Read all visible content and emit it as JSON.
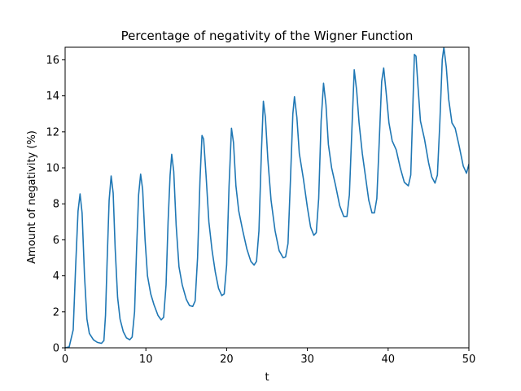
{
  "chart_data": {
    "type": "line",
    "title": "Percentage of negativity of the Wigner Function",
    "xlabel": "t",
    "ylabel": "Amount of negativity (%)",
    "xlim": [
      0,
      50
    ],
    "ylim": [
      0,
      16.7
    ],
    "xticks": [
      0,
      10,
      20,
      30,
      40,
      50
    ],
    "yticks": [
      0,
      2,
      4,
      6,
      8,
      10,
      12,
      14,
      16
    ],
    "grid": false,
    "line_color": "#1f77b4",
    "series": [
      {
        "points": [
          [
            0.0,
            0.0
          ],
          [
            0.5,
            0.05
          ],
          [
            1.0,
            1.0
          ],
          [
            1.3,
            4.5
          ],
          [
            1.6,
            7.6
          ],
          [
            1.85,
            8.55
          ],
          [
            2.1,
            7.5
          ],
          [
            2.4,
            4.0
          ],
          [
            2.7,
            1.6
          ],
          [
            3.0,
            0.8
          ],
          [
            3.5,
            0.45
          ],
          [
            4.0,
            0.3
          ],
          [
            4.5,
            0.25
          ],
          [
            4.8,
            0.4
          ],
          [
            5.0,
            1.8
          ],
          [
            5.2,
            4.8
          ],
          [
            5.45,
            8.2
          ],
          [
            5.7,
            9.55
          ],
          [
            5.95,
            8.6
          ],
          [
            6.2,
            5.5
          ],
          [
            6.5,
            2.8
          ],
          [
            6.8,
            1.6
          ],
          [
            7.2,
            0.9
          ],
          [
            7.6,
            0.55
          ],
          [
            8.0,
            0.45
          ],
          [
            8.3,
            0.6
          ],
          [
            8.6,
            2.0
          ],
          [
            8.85,
            5.5
          ],
          [
            9.1,
            8.5
          ],
          [
            9.35,
            9.65
          ],
          [
            9.6,
            8.8
          ],
          [
            9.9,
            6.0
          ],
          [
            10.2,
            4.0
          ],
          [
            10.6,
            3.0
          ],
          [
            11.0,
            2.4
          ],
          [
            11.5,
            1.8
          ],
          [
            11.9,
            1.55
          ],
          [
            12.2,
            1.7
          ],
          [
            12.5,
            3.5
          ],
          [
            12.75,
            7.0
          ],
          [
            13.0,
            9.6
          ],
          [
            13.2,
            10.75
          ],
          [
            13.45,
            9.8
          ],
          [
            13.75,
            6.8
          ],
          [
            14.1,
            4.5
          ],
          [
            14.5,
            3.5
          ],
          [
            15.0,
            2.7
          ],
          [
            15.4,
            2.35
          ],
          [
            15.8,
            2.3
          ],
          [
            16.1,
            2.6
          ],
          [
            16.4,
            5.0
          ],
          [
            16.7,
            9.3
          ],
          [
            16.95,
            11.8
          ],
          [
            17.15,
            11.6
          ],
          [
            17.45,
            9.6
          ],
          [
            17.8,
            7.0
          ],
          [
            18.2,
            5.4
          ],
          [
            18.6,
            4.2
          ],
          [
            19.0,
            3.3
          ],
          [
            19.4,
            2.9
          ],
          [
            19.7,
            3.0
          ],
          [
            20.0,
            4.6
          ],
          [
            20.3,
            9.0
          ],
          [
            20.6,
            12.2
          ],
          [
            20.85,
            11.4
          ],
          [
            21.15,
            9.0
          ],
          [
            21.5,
            7.6
          ],
          [
            22.0,
            6.5
          ],
          [
            22.5,
            5.5
          ],
          [
            23.0,
            4.8
          ],
          [
            23.4,
            4.6
          ],
          [
            23.7,
            4.8
          ],
          [
            24.0,
            6.5
          ],
          [
            24.3,
            10.8
          ],
          [
            24.55,
            13.7
          ],
          [
            24.8,
            12.8
          ],
          [
            25.1,
            10.5
          ],
          [
            25.5,
            8.2
          ],
          [
            26.0,
            6.5
          ],
          [
            26.5,
            5.4
          ],
          [
            27.0,
            5.0
          ],
          [
            27.3,
            5.05
          ],
          [
            27.6,
            5.8
          ],
          [
            27.9,
            9.3
          ],
          [
            28.2,
            13.0
          ],
          [
            28.4,
            13.95
          ],
          [
            28.7,
            12.8
          ],
          [
            29.0,
            10.8
          ],
          [
            29.5,
            9.4
          ],
          [
            30.0,
            7.8
          ],
          [
            30.4,
            6.7
          ],
          [
            30.8,
            6.25
          ],
          [
            31.1,
            6.4
          ],
          [
            31.4,
            8.3
          ],
          [
            31.7,
            12.6
          ],
          [
            32.0,
            14.7
          ],
          [
            32.3,
            13.5
          ],
          [
            32.6,
            11.3
          ],
          [
            33.0,
            10.0
          ],
          [
            33.5,
            9.0
          ],
          [
            34.0,
            7.9
          ],
          [
            34.5,
            7.3
          ],
          [
            34.9,
            7.3
          ],
          [
            35.2,
            8.5
          ],
          [
            35.5,
            12.0
          ],
          [
            35.8,
            15.45
          ],
          [
            36.1,
            14.3
          ],
          [
            36.4,
            12.5
          ],
          [
            36.8,
            10.8
          ],
          [
            37.2,
            9.5
          ],
          [
            37.6,
            8.2
          ],
          [
            38.0,
            7.5
          ],
          [
            38.3,
            7.5
          ],
          [
            38.6,
            8.3
          ],
          [
            38.9,
            11.5
          ],
          [
            39.2,
            14.8
          ],
          [
            39.45,
            15.55
          ],
          [
            39.75,
            14.2
          ],
          [
            40.1,
            12.5
          ],
          [
            40.5,
            11.5
          ],
          [
            41.0,
            11.0
          ],
          [
            41.5,
            10.0
          ],
          [
            42.0,
            9.2
          ],
          [
            42.5,
            9.0
          ],
          [
            42.8,
            9.6
          ],
          [
            43.0,
            12.5
          ],
          [
            43.25,
            16.3
          ],
          [
            43.45,
            16.2
          ],
          [
            43.7,
            14.5
          ],
          [
            44.0,
            12.6
          ],
          [
            44.5,
            11.6
          ],
          [
            45.0,
            10.3
          ],
          [
            45.4,
            9.5
          ],
          [
            45.8,
            9.15
          ],
          [
            46.1,
            9.6
          ],
          [
            46.4,
            12.5
          ],
          [
            46.7,
            16.0
          ],
          [
            46.9,
            16.7
          ],
          [
            47.2,
            15.6
          ],
          [
            47.5,
            13.8
          ],
          [
            47.9,
            12.5
          ],
          [
            48.3,
            12.2
          ],
          [
            48.8,
            11.2
          ],
          [
            49.3,
            10.1
          ],
          [
            49.7,
            9.7
          ],
          [
            50.0,
            10.2
          ]
        ]
      }
    ]
  }
}
